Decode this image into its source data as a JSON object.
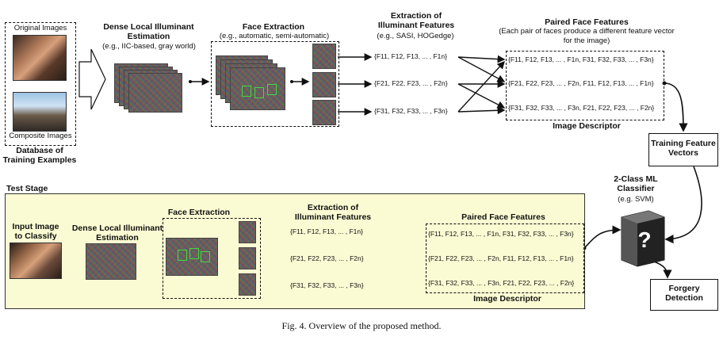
{
  "caption": "Fig. 4.   Overview of the proposed method.",
  "training": {
    "original_images": "Original Images",
    "composite_images": "Composite Images",
    "database_label": "Database of Training Examples",
    "dense_title": "Dense Local Illuminant Estimation",
    "dense_sub": "(e.g., IIC-based, gray world)",
    "face_title": "Face Extraction",
    "face_sub": "(e.g., automatic, semi-automatic)",
    "extract_title": "Extraction of Illuminant Features",
    "extract_sub": "(e.g., SASI, HOGedge)",
    "features": [
      "{F11, F12, F13, ... , F1n}",
      "{F21, F22, F23, ... , F2n}",
      "{F31, F32, F33, ... , F3n}"
    ],
    "paired_title": "Paired Face Features",
    "paired_sub": "(Each pair of faces produce a different feature vector for the image)",
    "paired_rows": [
      "{F11, F12, F13, ... , F1n, F31, F32, F33, ... , F3n}",
      "{F21, F22, F23, ... , F2n, F11, F12, F13, ... , F1n}",
      "{F31, F32, F33, ... , F3n, F21, F22, F23, ... , F2n}"
    ],
    "image_descriptor": "Image Descriptor",
    "training_vectors": "Training Feature Vectors"
  },
  "test": {
    "stage_label": "Test Stage",
    "input_label": "Input Image to Classify",
    "dense_title": "Dense Local Illuminant Estimation",
    "face_title": "Face Extraction",
    "extract_title": "Extraction of Illuminant Features",
    "features": [
      "{F11, F12, F13, ... , F1n}",
      "{F21, F22, F23, ... , F2n}",
      "{F31, F32, F33, ... , F3n}"
    ],
    "paired_title": "Paired Face Features",
    "paired_rows": [
      "{F11, F12, F13, ... , F1n, F31, F32, F33, ... , F3n}",
      "{F21, F22, F23, ... , F2n, F11, F12, F13, ... , F1n}",
      "{F31, F32, F33, ... , F3n, F21, F22, F23, ... , F2n}"
    ],
    "image_descriptor": "Image Descriptor"
  },
  "classifier": {
    "title": "2-Class ML Classifier",
    "sub": "(e.g. SVM)",
    "symbol": "?",
    "output": "Forgery Detection"
  }
}
